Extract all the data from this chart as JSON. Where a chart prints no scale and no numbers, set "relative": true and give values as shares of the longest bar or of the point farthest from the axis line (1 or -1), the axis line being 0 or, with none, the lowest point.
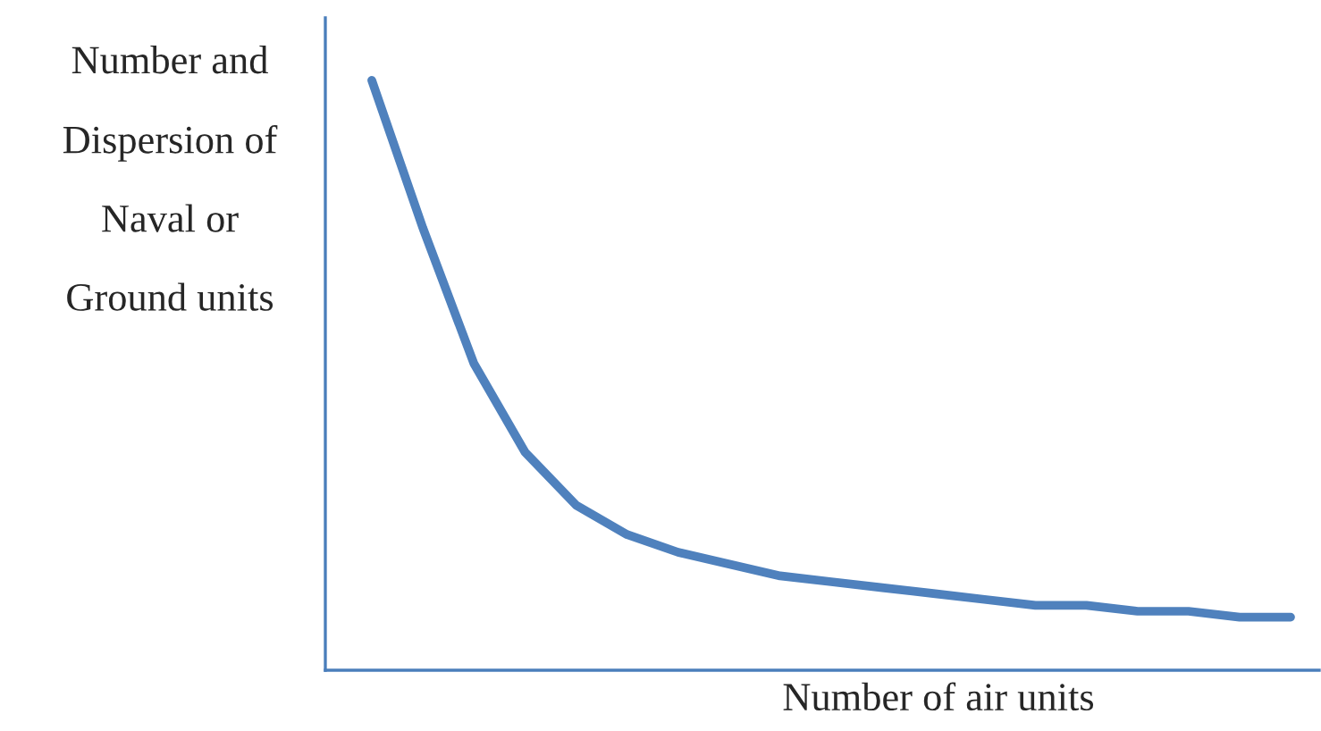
{
  "chart_data": {
    "type": "line",
    "relative": true,
    "ylabel": "Number and\nDispersion of\nNaval or\nGround units",
    "xlabel": "Number of air units",
    "categories": [
      null,
      null,
      null,
      null,
      null,
      null,
      null,
      null,
      null,
      null,
      null,
      null,
      null,
      null,
      null,
      null,
      null,
      null,
      null
    ],
    "series": [
      {
        "color": "#4f81bd",
        "values": [
          1,
          0.75,
          0.52,
          0.37,
          0.28,
          0.23,
          0.2,
          0.18,
          0.16,
          0.15,
          0.14,
          0.13,
          0.12,
          0.11,
          0.11,
          0.1,
          0.1,
          0.09,
          0.09
        ]
      }
    ],
    "legend": false,
    "marker": "none",
    "line_style": "solid"
  }
}
